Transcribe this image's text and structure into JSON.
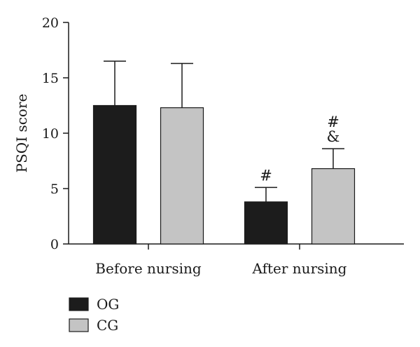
{
  "chart_data": {
    "type": "bar",
    "title": "",
    "xlabel": "",
    "ylabel": "PSQI score",
    "ylim": [
      0,
      20
    ],
    "yticks": [
      0,
      5,
      10,
      15,
      20
    ],
    "categories": [
      "Before nursing",
      "After nursing"
    ],
    "series": [
      {
        "name": "OG",
        "values": [
          12.5,
          3.8
        ],
        "errors": [
          4.0,
          1.3
        ],
        "color": "#1c1c1c"
      },
      {
        "name": "CG",
        "values": [
          12.3,
          6.8
        ],
        "errors": [
          4.0,
          1.8
        ],
        "color": "#c4c4c4"
      }
    ],
    "annotations": [
      {
        "category": 1,
        "series": 0,
        "lines": [
          "#"
        ]
      },
      {
        "category": 1,
        "series": 1,
        "lines": [
          "#",
          "&"
        ]
      }
    ],
    "legend_position": "bottom-left",
    "grid": false
  }
}
